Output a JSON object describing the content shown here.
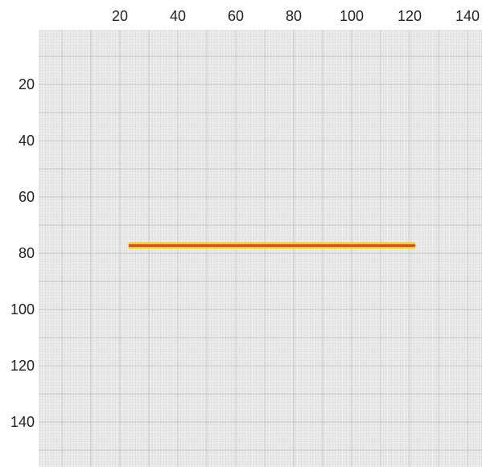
{
  "chart_data": {
    "type": "line",
    "title": "",
    "xlabel": "",
    "ylabel": "",
    "xlim": [
      0,
      150
    ],
    "ylim": [
      0,
      150
    ],
    "y_inverted": true,
    "x_axis_position": "top",
    "y_axis_position": "left",
    "grid": true,
    "x_ticks": [
      20,
      40,
      60,
      80,
      100,
      120,
      140
    ],
    "y_ticks": [
      20,
      40,
      60,
      80,
      100,
      120,
      140
    ],
    "x_tick_labels": [
      "20",
      "40",
      "60",
      "80",
      "100",
      "120",
      "140"
    ],
    "y_tick_labels": [
      "20",
      "40",
      "60",
      "80",
      "100",
      "120",
      "140"
    ],
    "series": [
      {
        "x": [
          23,
          122
        ],
        "y": [
          77.3,
          77.3
        ],
        "line_color": "#d8452a",
        "glow_color": "#e8e000"
      }
    ],
    "colors": {
      "plot_background": "#eeeeee",
      "grid_minor": "#c4c4c4",
      "grid_major": "#9a9a9a"
    }
  }
}
